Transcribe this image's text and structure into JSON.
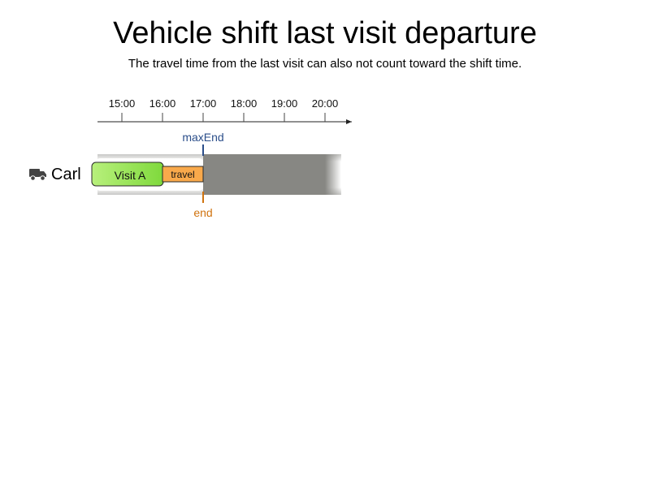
{
  "title": "Vehicle shift last visit departure",
  "subtitle": "The travel time from the last visit can also not count toward the shift time.",
  "time_axis": {
    "ticks": [
      "15:00",
      "16:00",
      "17:00",
      "18:00",
      "19:00",
      "20:00"
    ]
  },
  "vehicle": {
    "name": "Carl",
    "icon": "truck-icon"
  },
  "visit": {
    "label": "Visit A",
    "color": "#8fe04a"
  },
  "travel": {
    "label": "travel",
    "color": "#f9a94b"
  },
  "markers": {
    "max_end": {
      "label": "maxEnd",
      "time": "17:00",
      "color": "#2b4e8a"
    },
    "end": {
      "label": "end",
      "time": "17:00",
      "color": "#d0730f"
    }
  },
  "colors": {
    "unavailable": "#878783"
  }
}
